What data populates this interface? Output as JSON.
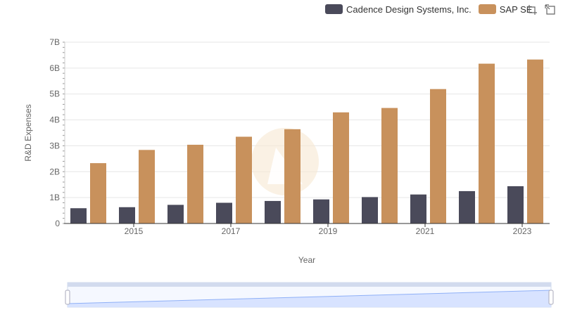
{
  "chart_data": {
    "type": "bar",
    "xlabel": "Year",
    "ylabel": "R&D Expenses",
    "ylim": [
      0,
      7000000000
    ],
    "y_ticks": [
      "0",
      "1B",
      "2B",
      "3B",
      "4B",
      "5B",
      "6B",
      "7B"
    ],
    "categories": [
      "2014",
      "2015",
      "2016",
      "2017",
      "2018",
      "2019",
      "2020",
      "2021",
      "2022",
      "2023"
    ],
    "x_tick_labels": [
      "2015",
      "2017",
      "2019",
      "2021",
      "2023"
    ],
    "grid": true,
    "legend_position": "top-right",
    "series": [
      {
        "name": "Cadence Design Systems, Inc.",
        "color": "#4a4a5a",
        "values": [
          590000000,
          630000000,
          720000000,
          800000000,
          870000000,
          930000000,
          1020000000,
          1120000000,
          1250000000,
          1440000000
        ]
      },
      {
        "name": "SAP SE",
        "color": "#c8915c",
        "values": [
          2330000000,
          2840000000,
          3040000000,
          3350000000,
          3640000000,
          4290000000,
          4460000000,
          5190000000,
          6170000000,
          6330000000
        ]
      }
    ]
  },
  "toolbar": {
    "zoom_icon": "zoom-icon",
    "reset_icon": "reset-icon"
  }
}
